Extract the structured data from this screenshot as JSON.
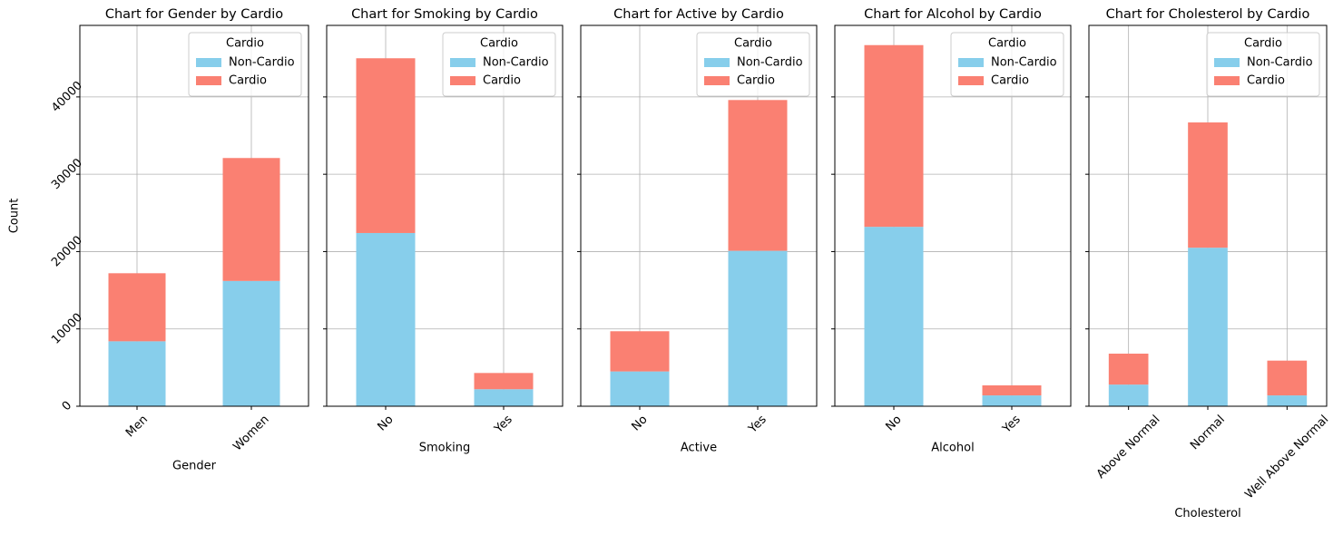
{
  "chart_data": [
    {
      "type": "bar",
      "title": "Chart for Gender by Cardio",
      "x_label": "Gender",
      "y_label": "Count",
      "legend_title": "Cardio",
      "legend": "upper right",
      "grid": true,
      "categories": [
        "Men",
        "Women"
      ],
      "series": [
        {
          "name": "Non-Cardio",
          "color": "#87ceeb",
          "values": [
            8400,
            16200
          ]
        },
        {
          "name": "Cardio",
          "color": "#fa8072",
          "values": [
            8800,
            15900
          ]
        }
      ],
      "ylim": [
        0,
        49250
      ],
      "yticks": [
        0,
        10000,
        20000,
        30000,
        40000
      ]
    },
    {
      "type": "bar",
      "title": "Chart for Smoking by Cardio",
      "x_label": "Smoking",
      "legend_title": "Cardio",
      "legend": "upper right",
      "grid": true,
      "categories": [
        "No",
        "Yes"
      ],
      "series": [
        {
          "name": "Non-Cardio",
          "color": "#87ceeb",
          "values": [
            22400,
            2200
          ]
        },
        {
          "name": "Cardio",
          "color": "#fa8072",
          "values": [
            22600,
            2100
          ]
        }
      ],
      "ylim": [
        0,
        49250
      ],
      "yticks": [
        0,
        10000,
        20000,
        30000,
        40000
      ]
    },
    {
      "type": "bar",
      "title": "Chart for Active by Cardio",
      "x_label": "Active",
      "legend_title": "Cardio",
      "legend": "upper right",
      "grid": true,
      "categories": [
        "No",
        "Yes"
      ],
      "series": [
        {
          "name": "Non-Cardio",
          "color": "#87ceeb",
          "values": [
            4500,
            20100
          ]
        },
        {
          "name": "Cardio",
          "color": "#fa8072",
          "values": [
            5200,
            19500
          ]
        }
      ],
      "ylim": [
        0,
        49250
      ],
      "yticks": [
        0,
        10000,
        20000,
        30000,
        40000
      ]
    },
    {
      "type": "bar",
      "title": "Chart for Alcohol by Cardio",
      "x_label": "Alcohol",
      "legend_title": "Cardio",
      "legend": "upper right",
      "grid": true,
      "categories": [
        "No",
        "Yes"
      ],
      "series": [
        {
          "name": "Non-Cardio",
          "color": "#87ceeb",
          "values": [
            23200,
            1400
          ]
        },
        {
          "name": "Cardio",
          "color": "#fa8072",
          "values": [
            23500,
            1300
          ]
        }
      ],
      "ylim": [
        0,
        49250
      ],
      "yticks": [
        0,
        10000,
        20000,
        30000,
        40000
      ]
    },
    {
      "type": "bar",
      "title": "Chart for Cholesterol by Cardio",
      "x_label": "Cholesterol",
      "legend_title": "Cardio",
      "legend": "upper right",
      "grid": true,
      "categories": [
        "Above Normal",
        "Normal",
        "Well Above Normal"
      ],
      "series": [
        {
          "name": "Non-Cardio",
          "color": "#87ceeb",
          "values": [
            2800,
            20500,
            1400
          ]
        },
        {
          "name": "Cardio",
          "color": "#fa8072",
          "values": [
            4000,
            16200,
            4500
          ]
        }
      ],
      "ylim": [
        0,
        49250
      ],
      "yticks": [
        0,
        10000,
        20000,
        30000,
        40000
      ]
    }
  ]
}
